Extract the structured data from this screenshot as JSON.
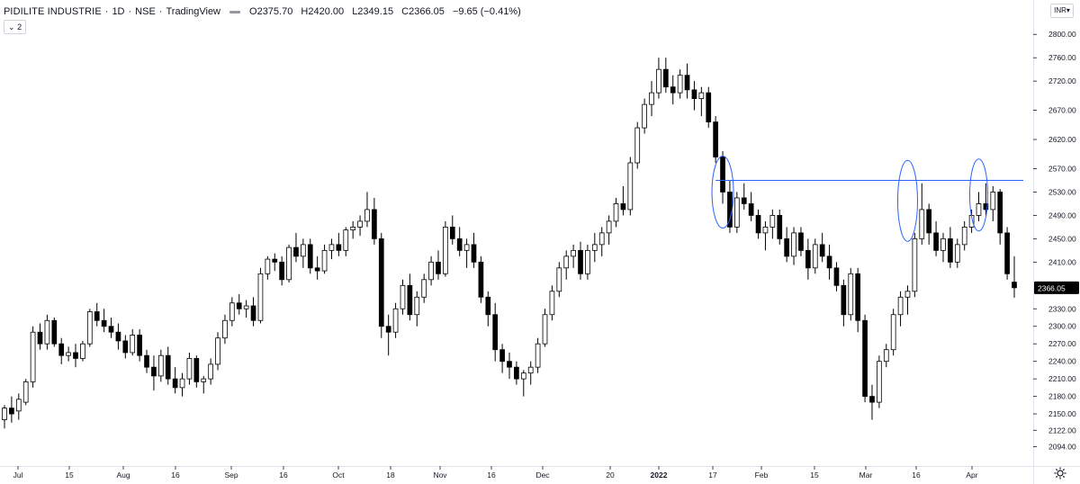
{
  "header": {
    "symbol": "PIDILITE INDUSTRIE",
    "interval": "1D",
    "exchange": "NSE",
    "source": "TradingView",
    "open": "O2375.70",
    "high": "H2420.00",
    "low": "L2349.15",
    "close": "C2366.05",
    "change": "−9.65 (−0.41%)"
  },
  "collapse_label": "2",
  "currency_label": "INR",
  "colors": {
    "up_fill": "#ffffff",
    "down_fill": "#000000",
    "candle_border": "#000000",
    "trendline": "#2962ff",
    "price_label_bg": "#000000",
    "price_label_text": "#ffffff"
  },
  "chart_data": {
    "type": "candlestick",
    "y_ticks": [
      "2800.00",
      "2760.00",
      "2720.00",
      "2670.00",
      "2620.00",
      "2570.00",
      "2530.00",
      "2490.00",
      "2450.00",
      "2410.00",
      "2366.05",
      "2330.00",
      "2300.00",
      "2270.00",
      "2240.00",
      "2210.00",
      "2180.00",
      "2150.00",
      "2122.00",
      "2094.00"
    ],
    "y_range": [
      2070,
      2825
    ],
    "x_ticks": [
      "Jul",
      "15",
      "Aug",
      "16",
      "Sep",
      "16",
      "Oct",
      "18",
      "Nov",
      "16",
      "Dec",
      "20",
      "2022",
      "17",
      "Feb",
      "15",
      "Mar",
      "16",
      "Apr"
    ],
    "last_price": "2366.05",
    "resistance_level": 2550,
    "annotations": [
      "ellipse around early-Feb high",
      "ellipse around mid-Mar high",
      "ellipse around early-Apr high",
      "horizontal resistance line ≈2550"
    ],
    "candles": [
      [
        2140,
        2165,
        2125,
        2160
      ],
      [
        2160,
        2180,
        2135,
        2150
      ],
      [
        2155,
        2185,
        2140,
        2175
      ],
      [
        2170,
        2210,
        2165,
        2205
      ],
      [
        2205,
        2300,
        2195,
        2290
      ],
      [
        2290,
        2305,
        2260,
        2270
      ],
      [
        2270,
        2320,
        2260,
        2310
      ],
      [
        2310,
        2315,
        2265,
        2270
      ],
      [
        2270,
        2280,
        2235,
        2250
      ],
      [
        2250,
        2265,
        2240,
        2255
      ],
      [
        2255,
        2270,
        2230,
        2245
      ],
      [
        2245,
        2275,
        2240,
        2270
      ],
      [
        2270,
        2330,
        2265,
        2325
      ],
      [
        2325,
        2340,
        2300,
        2310
      ],
      [
        2310,
        2330,
        2290,
        2300
      ],
      [
        2300,
        2315,
        2280,
        2290
      ],
      [
        2290,
        2305,
        2260,
        2275
      ],
      [
        2275,
        2285,
        2245,
        2255
      ],
      [
        2255,
        2295,
        2250,
        2285
      ],
      [
        2285,
        2295,
        2240,
        2250
      ],
      [
        2250,
        2260,
        2220,
        2230
      ],
      [
        2230,
        2250,
        2190,
        2215
      ],
      [
        2215,
        2260,
        2205,
        2250
      ],
      [
        2250,
        2265,
        2200,
        2210
      ],
      [
        2210,
        2230,
        2185,
        2195
      ],
      [
        2195,
        2220,
        2180,
        2210
      ],
      [
        2210,
        2255,
        2200,
        2245
      ],
      [
        2245,
        2250,
        2195,
        2205
      ],
      [
        2205,
        2215,
        2185,
        2210
      ],
      [
        2210,
        2245,
        2200,
        2235
      ],
      [
        2235,
        2290,
        2225,
        2280
      ],
      [
        2280,
        2320,
        2270,
        2310
      ],
      [
        2310,
        2350,
        2300,
        2340
      ],
      [
        2340,
        2355,
        2320,
        2330
      ],
      [
        2330,
        2345,
        2315,
        2335
      ],
      [
        2335,
        2350,
        2300,
        2310
      ],
      [
        2310,
        2400,
        2305,
        2390
      ],
      [
        2390,
        2420,
        2380,
        2415
      ],
      [
        2415,
        2425,
        2395,
        2410
      ],
      [
        2410,
        2420,
        2370,
        2380
      ],
      [
        2380,
        2440,
        2375,
        2435
      ],
      [
        2435,
        2460,
        2410,
        2420
      ],
      [
        2420,
        2450,
        2400,
        2440
      ],
      [
        2440,
        2450,
        2390,
        2400
      ],
      [
        2400,
        2420,
        2380,
        2395
      ],
      [
        2395,
        2440,
        2390,
        2430
      ],
      [
        2430,
        2450,
        2415,
        2440
      ],
      [
        2440,
        2460,
        2420,
        2430
      ],
      [
        2430,
        2470,
        2420,
        2465
      ],
      [
        2465,
        2480,
        2450,
        2470
      ],
      [
        2470,
        2490,
        2455,
        2480
      ],
      [
        2480,
        2530,
        2470,
        2500
      ],
      [
        2500,
        2520,
        2440,
        2450
      ],
      [
        2450,
        2460,
        2280,
        2300
      ],
      [
        2300,
        2320,
        2250,
        2290
      ],
      [
        2290,
        2340,
        2280,
        2330
      ],
      [
        2330,
        2380,
        2320,
        2370
      ],
      [
        2370,
        2390,
        2310,
        2320
      ],
      [
        2320,
        2360,
        2300,
        2350
      ],
      [
        2350,
        2390,
        2340,
        2380
      ],
      [
        2380,
        2420,
        2370,
        2410
      ],
      [
        2410,
        2430,
        2380,
        2390
      ],
      [
        2390,
        2480,
        2385,
        2470
      ],
      [
        2470,
        2490,
        2440,
        2450
      ],
      [
        2450,
        2470,
        2420,
        2430
      ],
      [
        2430,
        2450,
        2400,
        2440
      ],
      [
        2440,
        2460,
        2400,
        2410
      ],
      [
        2410,
        2420,
        2340,
        2350
      ],
      [
        2350,
        2360,
        2300,
        2320
      ],
      [
        2320,
        2340,
        2240,
        2260
      ],
      [
        2260,
        2270,
        2220,
        2240
      ],
      [
        2240,
        2255,
        2210,
        2230
      ],
      [
        2230,
        2240,
        2200,
        2210
      ],
      [
        2210,
        2225,
        2180,
        2220
      ],
      [
        2220,
        2240,
        2200,
        2230
      ],
      [
        2230,
        2280,
        2220,
        2270
      ],
      [
        2270,
        2330,
        2265,
        2320
      ],
      [
        2320,
        2370,
        2310,
        2360
      ],
      [
        2360,
        2410,
        2350,
        2400
      ],
      [
        2400,
        2430,
        2380,
        2420
      ],
      [
        2420,
        2440,
        2400,
        2430
      ],
      [
        2430,
        2445,
        2380,
        2390
      ],
      [
        2390,
        2440,
        2380,
        2430
      ],
      [
        2430,
        2460,
        2410,
        2440
      ],
      [
        2440,
        2470,
        2420,
        2460
      ],
      [
        2460,
        2490,
        2440,
        2480
      ],
      [
        2480,
        2520,
        2470,
        2510
      ],
      [
        2510,
        2540,
        2490,
        2500
      ],
      [
        2500,
        2590,
        2490,
        2580
      ],
      [
        2580,
        2650,
        2570,
        2640
      ],
      [
        2640,
        2690,
        2630,
        2680
      ],
      [
        2680,
        2720,
        2660,
        2700
      ],
      [
        2700,
        2760,
        2690,
        2740
      ],
      [
        2740,
        2760,
        2700,
        2710
      ],
      [
        2710,
        2730,
        2680,
        2700
      ],
      [
        2700,
        2740,
        2690,
        2730
      ],
      [
        2730,
        2750,
        2690,
        2705
      ],
      [
        2705,
        2720,
        2670,
        2690
      ],
      [
        2690,
        2710,
        2660,
        2700
      ],
      [
        2700,
        2710,
        2640,
        2650
      ],
      [
        2650,
        2660,
        2580,
        2590
      ],
      [
        2590,
        2600,
        2510,
        2530
      ],
      [
        2530,
        2550,
        2460,
        2470
      ],
      [
        2470,
        2530,
        2460,
        2520
      ],
      [
        2520,
        2545,
        2500,
        2510
      ],
      [
        2510,
        2530,
        2480,
        2490
      ],
      [
        2490,
        2500,
        2450,
        2460
      ],
      [
        2460,
        2480,
        2430,
        2470
      ],
      [
        2470,
        2500,
        2450,
        2490
      ],
      [
        2490,
        2500,
        2440,
        2450
      ],
      [
        2450,
        2470,
        2410,
        2420
      ],
      [
        2420,
        2470,
        2405,
        2460
      ],
      [
        2460,
        2470,
        2420,
        2430
      ],
      [
        2430,
        2450,
        2380,
        2400
      ],
      [
        2400,
        2450,
        2390,
        2440
      ],
      [
        2440,
        2460,
        2410,
        2420
      ],
      [
        2420,
        2440,
        2380,
        2400
      ],
      [
        2400,
        2410,
        2360,
        2370
      ],
      [
        2370,
        2380,
        2300,
        2320
      ],
      [
        2320,
        2400,
        2310,
        2390
      ],
      [
        2390,
        2400,
        2290,
        2310
      ],
      [
        2310,
        2320,
        2170,
        2180
      ],
      [
        2180,
        2200,
        2140,
        2170
      ],
      [
        2170,
        2250,
        2160,
        2240
      ],
      [
        2240,
        2270,
        2230,
        2260
      ],
      [
        2260,
        2330,
        2250,
        2320
      ],
      [
        2320,
        2360,
        2300,
        2350
      ],
      [
        2350,
        2370,
        2320,
        2360
      ],
      [
        2360,
        2460,
        2350,
        2450
      ],
      [
        2450,
        2545,
        2440,
        2500
      ],
      [
        2500,
        2510,
        2440,
        2460
      ],
      [
        2460,
        2480,
        2420,
        2430
      ],
      [
        2430,
        2460,
        2410,
        2450
      ],
      [
        2450,
        2470,
        2400,
        2410
      ],
      [
        2410,
        2450,
        2400,
        2440
      ],
      [
        2440,
        2480,
        2430,
        2470
      ],
      [
        2470,
        2500,
        2460,
        2490
      ],
      [
        2490,
        2530,
        2480,
        2510
      ],
      [
        2510,
        2545,
        2490,
        2500
      ],
      [
        2500,
        2540,
        2480,
        2530
      ],
      [
        2530,
        2535,
        2440,
        2460
      ],
      [
        2460,
        2470,
        2380,
        2390
      ],
      [
        2375.7,
        2420,
        2349.15,
        2366.05
      ]
    ]
  },
  "settings_icon": "gear-icon"
}
